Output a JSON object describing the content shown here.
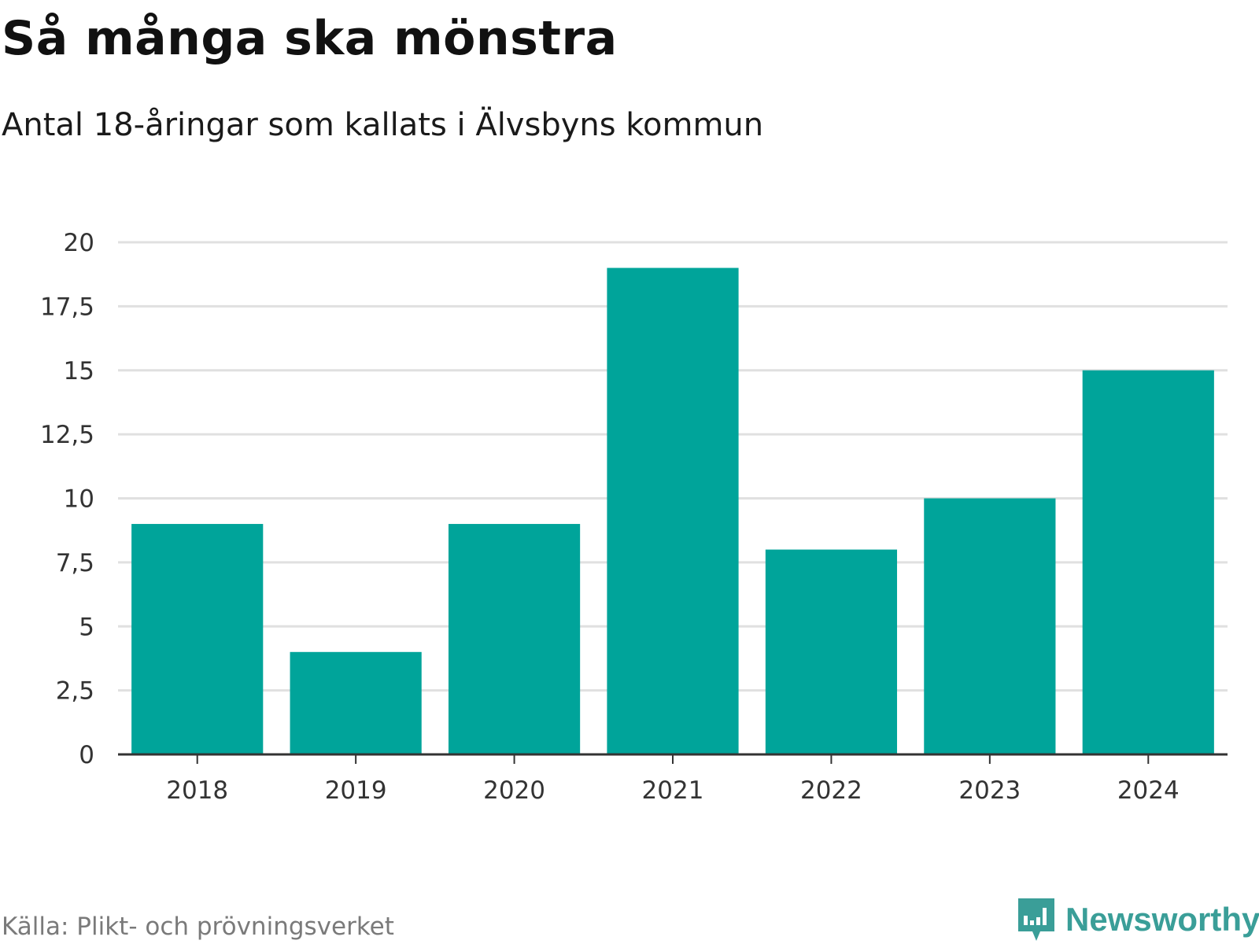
{
  "header": {
    "title": "Så många ska mönstra",
    "subtitle": "Antal 18-åringar som kallats i Älvsbyns kommun"
  },
  "footer": {
    "source": "Källa: Plikt- och prövningsverket",
    "brand": "Newsworthy",
    "brand_icon": "newsworthy-logo-icon"
  },
  "colors": {
    "bar": "#00a49a",
    "grid": "#e0e0e0",
    "axis": "#333333",
    "brand": "#3a9e98"
  },
  "chart_data": {
    "type": "bar",
    "title": "Så många ska mönstra",
    "subtitle": "Antal 18-åringar som kallats i Älvsbyns kommun",
    "categories": [
      "2018",
      "2019",
      "2020",
      "2021",
      "2022",
      "2023",
      "2024"
    ],
    "values": [
      9,
      4,
      9,
      19,
      8,
      10,
      15
    ],
    "xlabel": "",
    "ylabel": "",
    "ylim": [
      0,
      20
    ],
    "yticks": [
      0,
      2.5,
      5,
      7.5,
      10,
      12.5,
      15,
      17.5,
      20
    ],
    "ytick_labels": [
      "0",
      "2,5",
      "5",
      "7,5",
      "10",
      "12,5",
      "15",
      "17,5",
      "20"
    ],
    "grid": true,
    "legend": "none"
  }
}
